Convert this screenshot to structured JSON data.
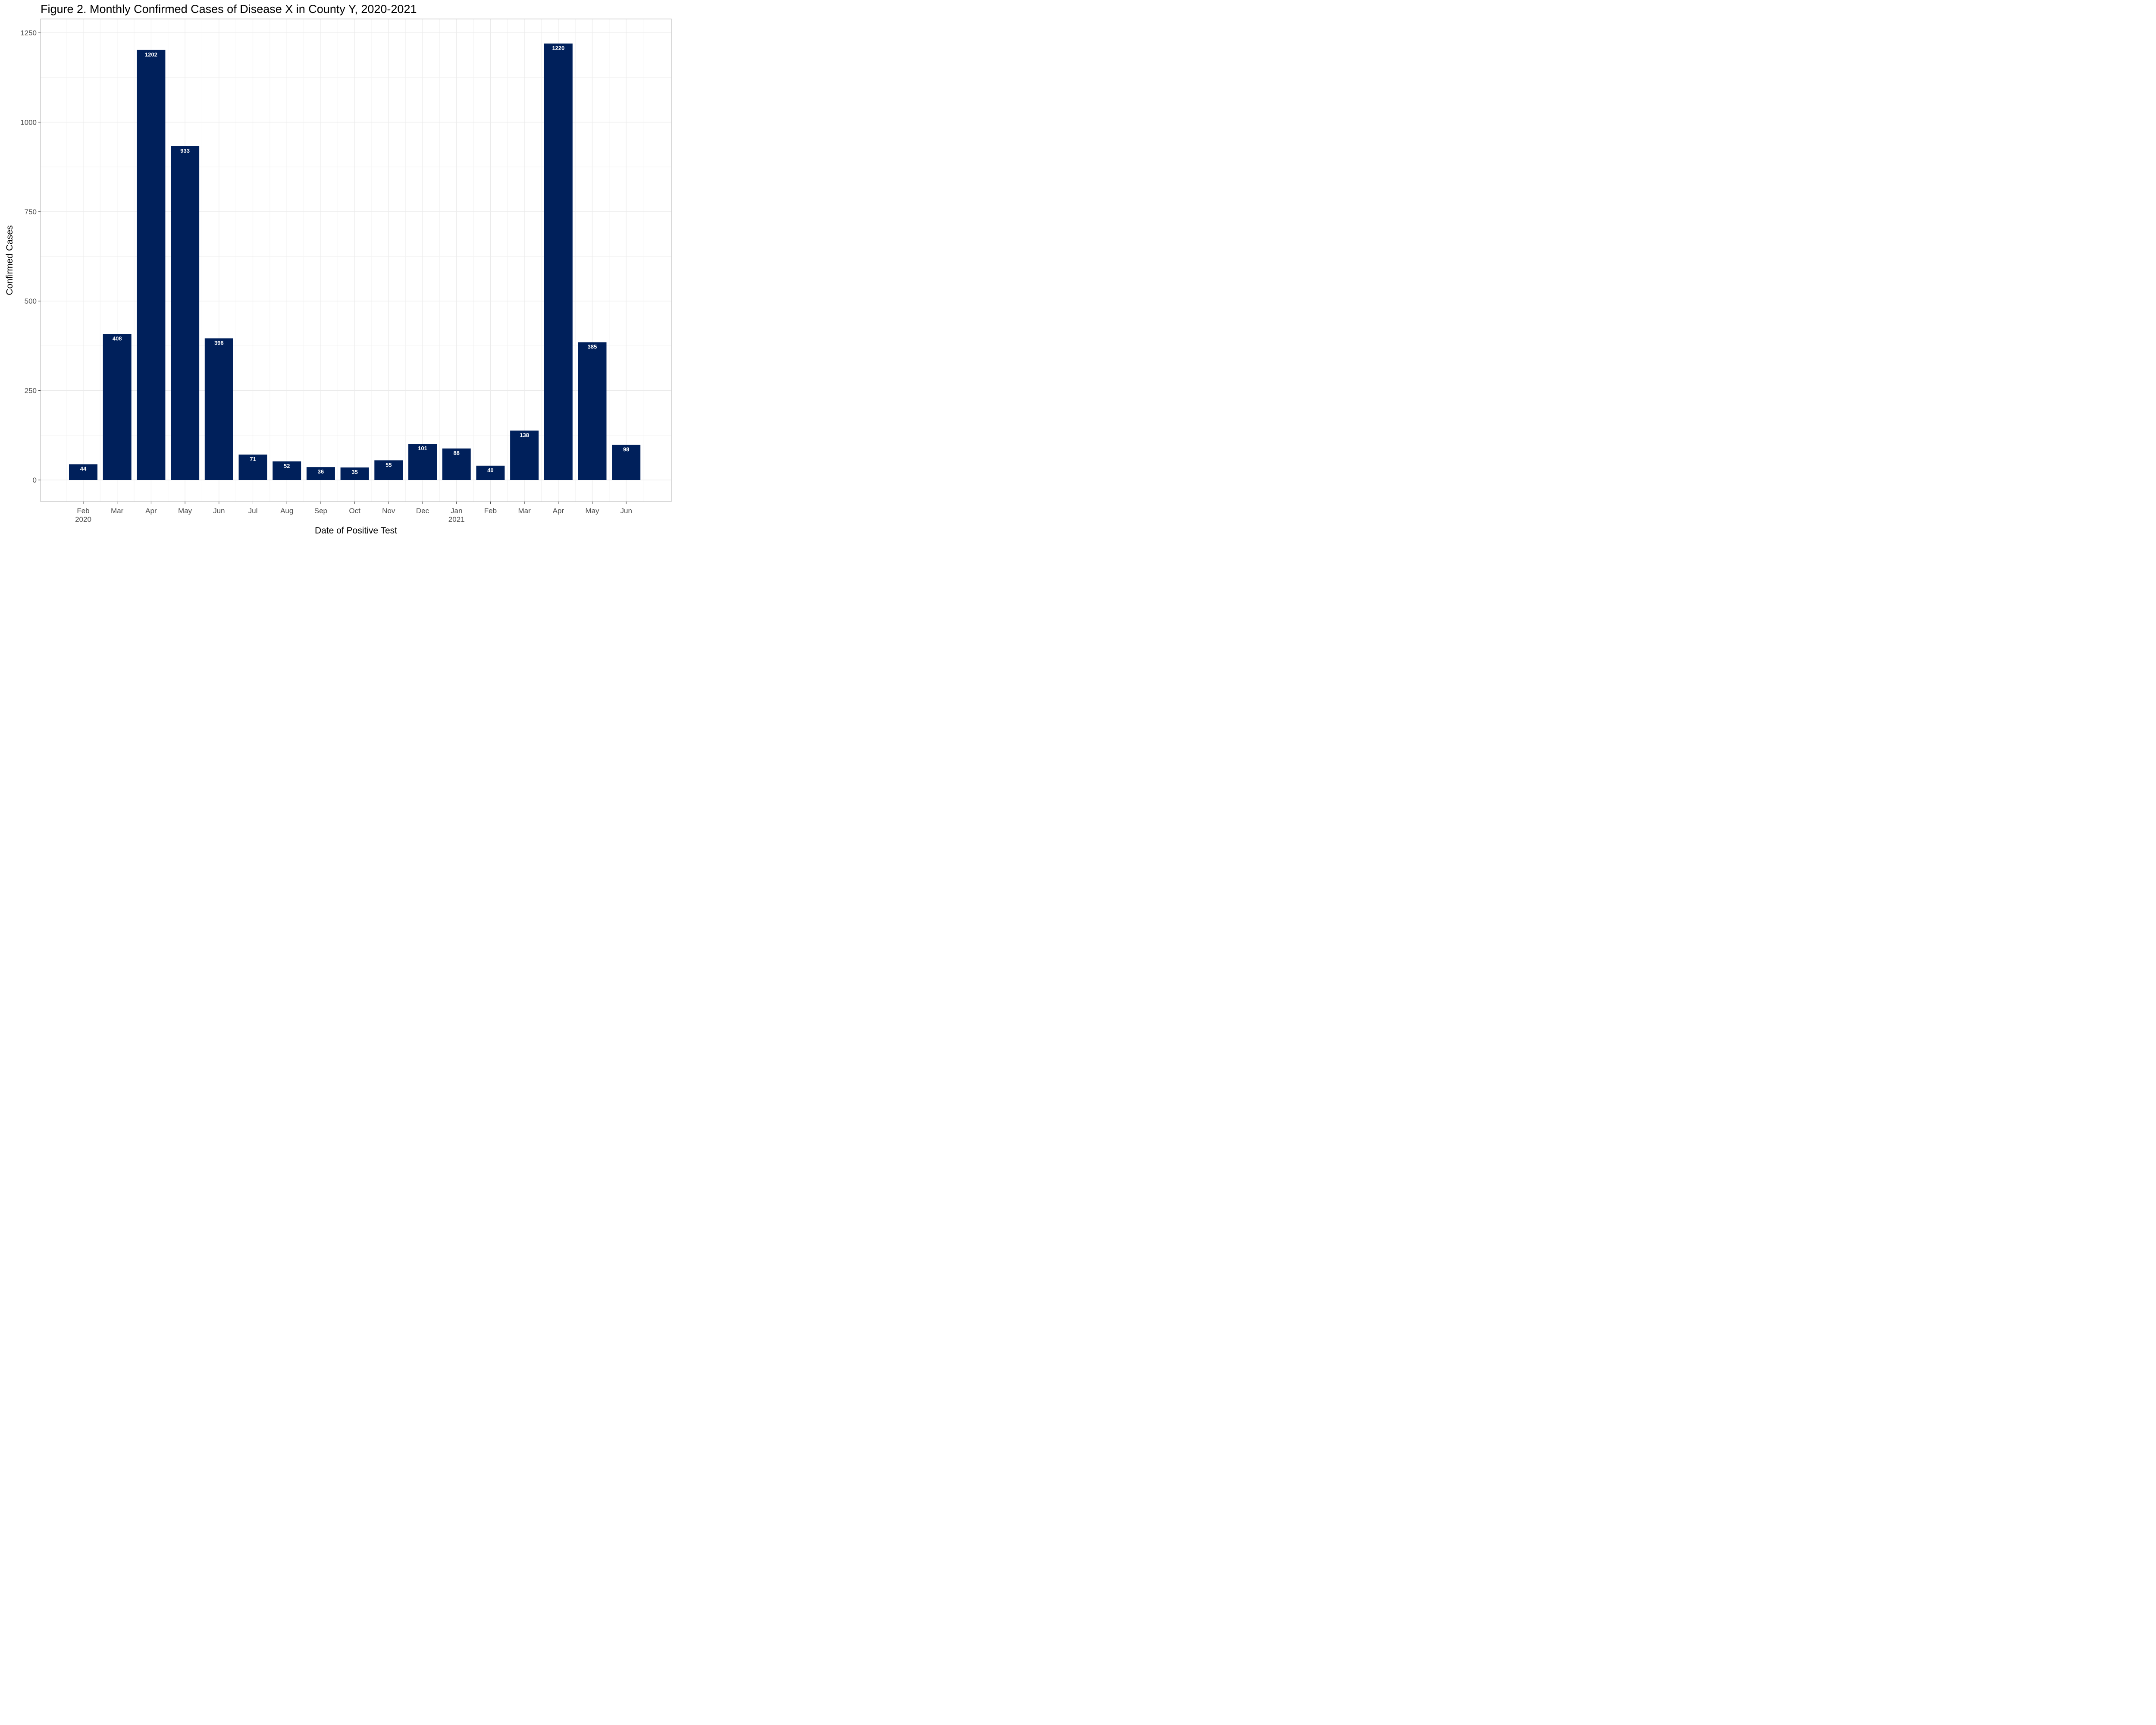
{
  "chart_data": {
    "type": "bar",
    "title": "Figure 2. Monthly Confirmed Cases of Disease X in County Y, 2020-2021",
    "xlabel": "Date of Positive Test",
    "ylabel": "Confirmed Cases",
    "categories": [
      "Feb 2020",
      "Mar 2020",
      "Apr 2020",
      "May 2020",
      "Jun 2020",
      "Jul 2020",
      "Aug 2020",
      "Sep 2020",
      "Oct 2020",
      "Nov 2020",
      "Dec 2020",
      "Jan 2021",
      "Feb 2021",
      "Mar 2021",
      "Apr 2021",
      "May 2021",
      "Jun 2021"
    ],
    "tick_labels": [
      {
        "month": "Feb",
        "year": "2020"
      },
      {
        "month": "Mar",
        "year": ""
      },
      {
        "month": "Apr",
        "year": ""
      },
      {
        "month": "May",
        "year": ""
      },
      {
        "month": "Jun",
        "year": ""
      },
      {
        "month": "Jul",
        "year": ""
      },
      {
        "month": "Aug",
        "year": ""
      },
      {
        "month": "Sep",
        "year": ""
      },
      {
        "month": "Oct",
        "year": ""
      },
      {
        "month": "Nov",
        "year": ""
      },
      {
        "month": "Dec",
        "year": ""
      },
      {
        "month": "Jan",
        "year": "2021"
      },
      {
        "month": "Feb",
        "year": ""
      },
      {
        "month": "Mar",
        "year": ""
      },
      {
        "month": "Apr",
        "year": ""
      },
      {
        "month": "May",
        "year": ""
      },
      {
        "month": "Jun",
        "year": ""
      }
    ],
    "values": [
      44,
      408,
      1202,
      933,
      396,
      71,
      52,
      36,
      35,
      55,
      101,
      88,
      40,
      138,
      1220,
      385,
      98
    ],
    "ylim": [
      -120,
      1270
    ],
    "yticks": [
      0,
      250,
      500,
      750,
      1000,
      1250
    ],
    "bar_color": "#00205b",
    "grid": true,
    "legend": "none"
  }
}
